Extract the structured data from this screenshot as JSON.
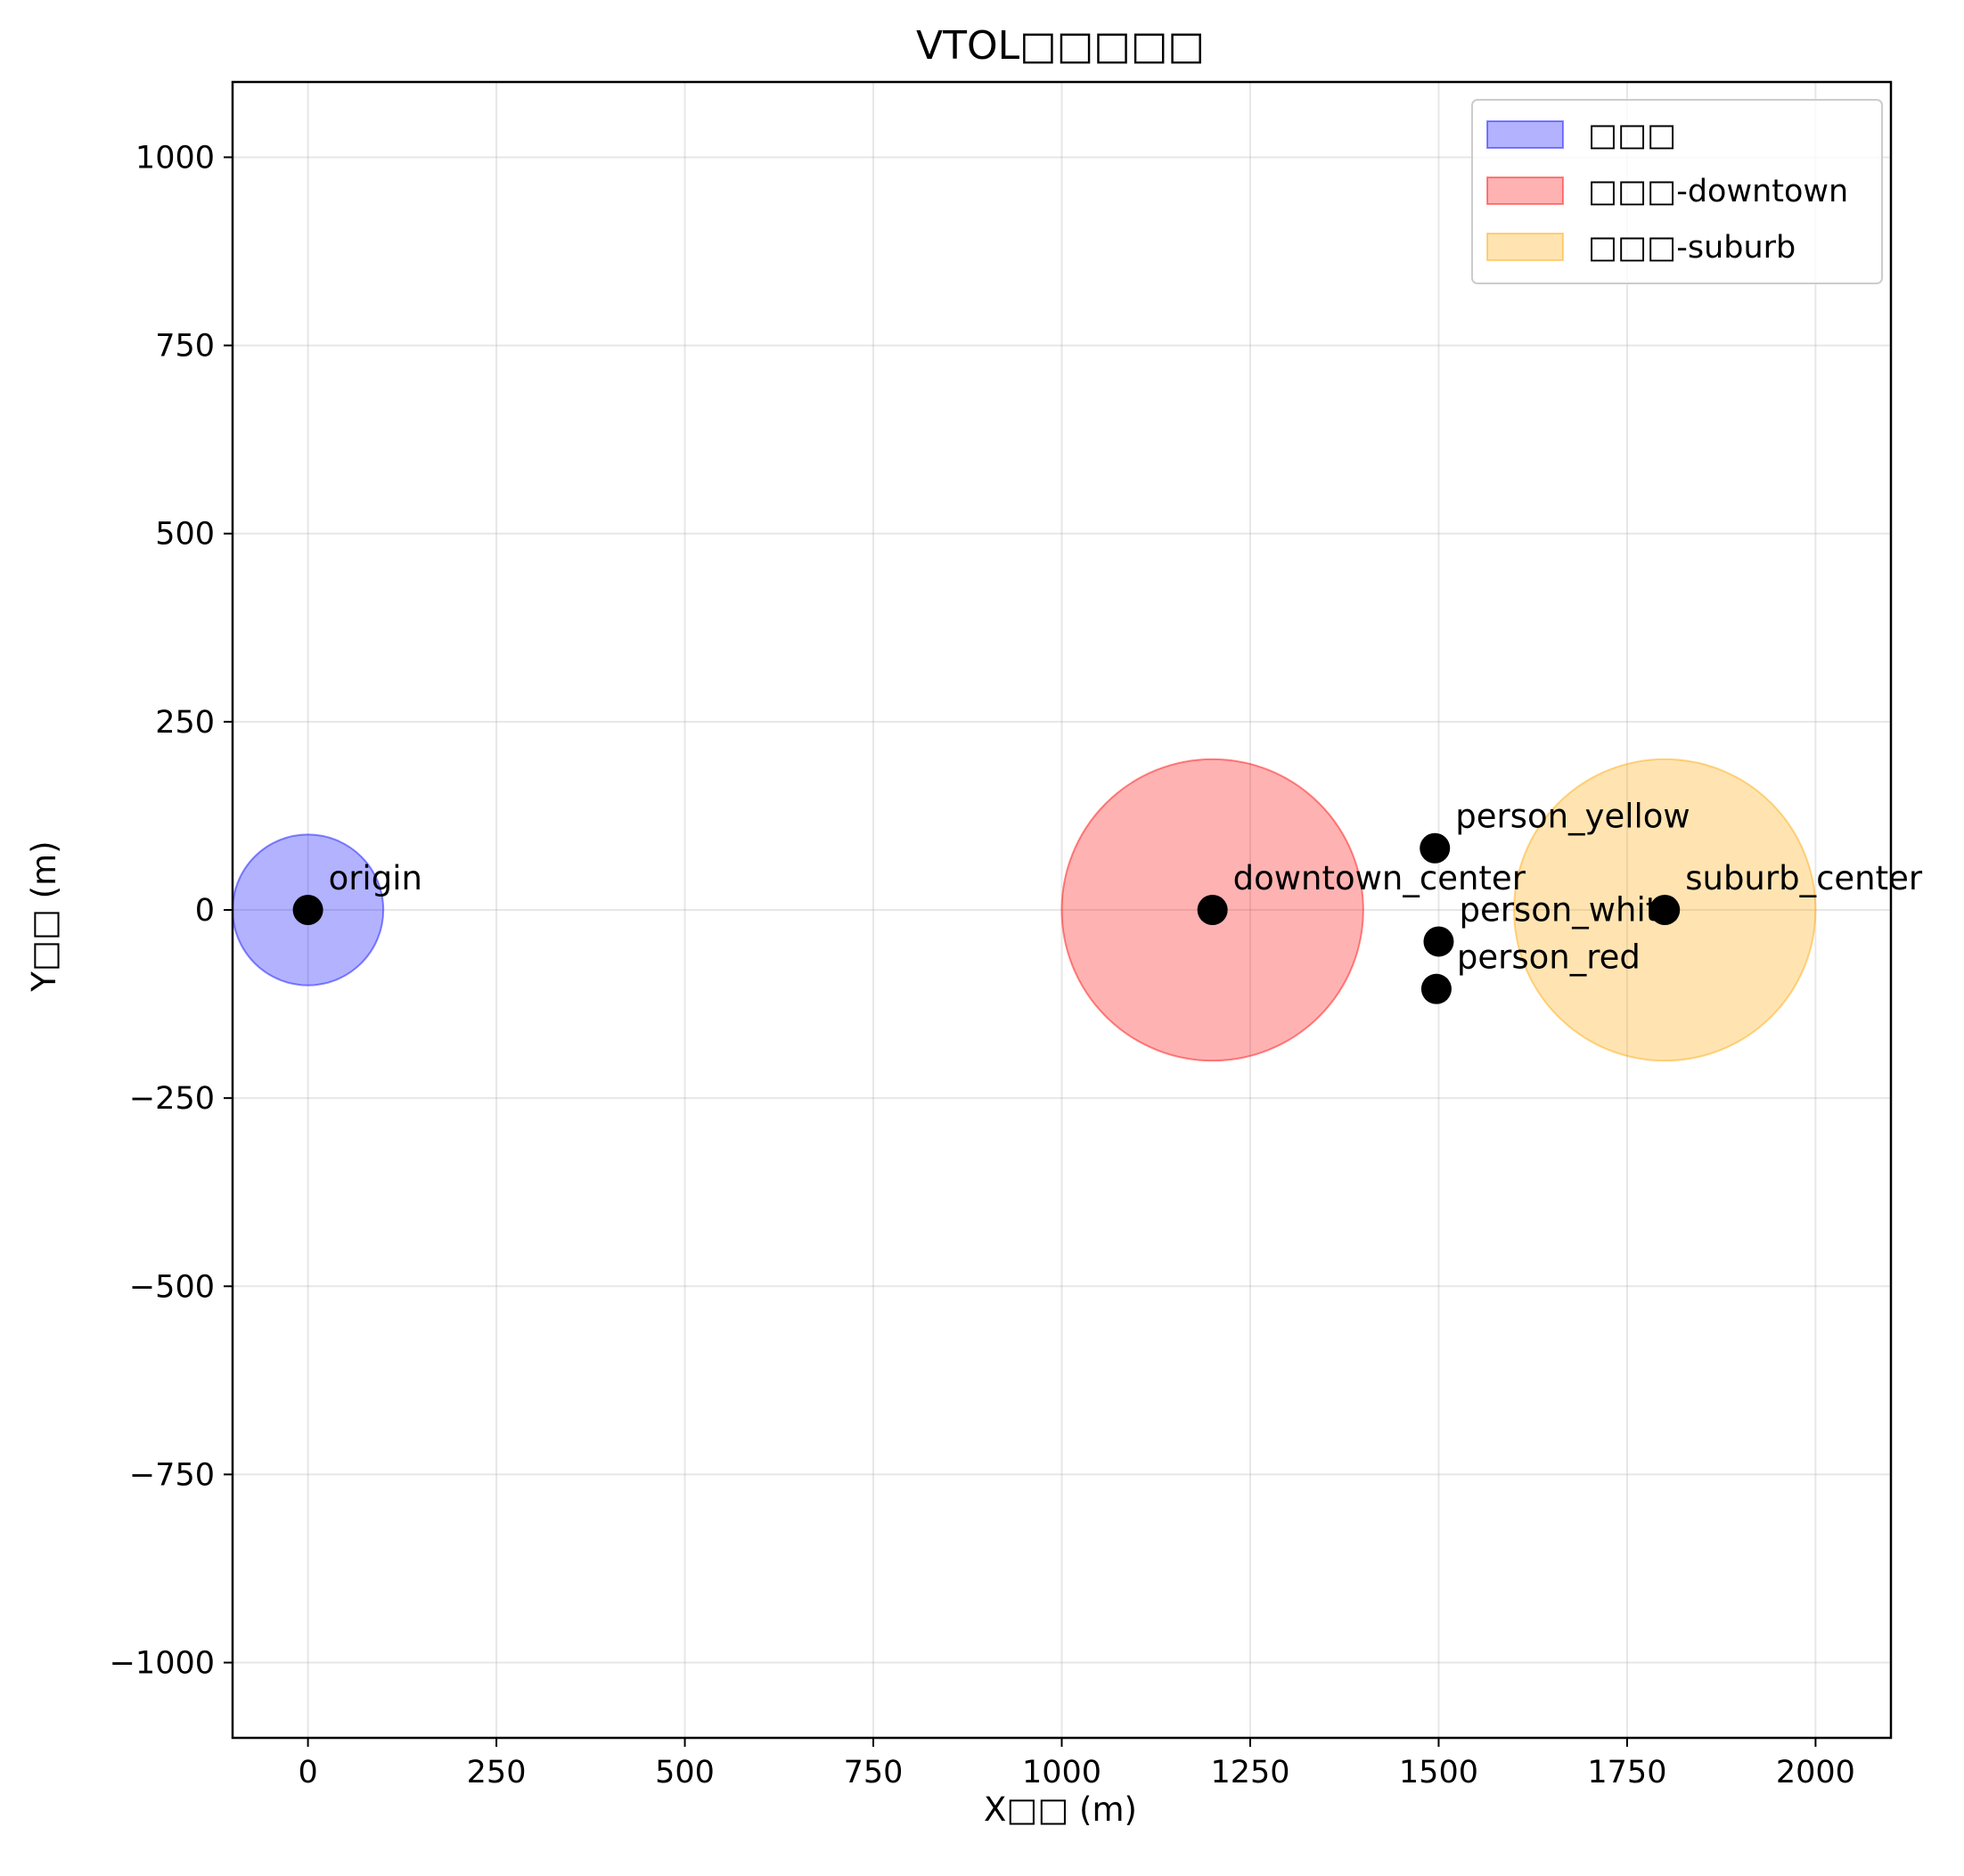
{
  "chart_data": {
    "type": "scatter",
    "title": "VTOL□□□□□",
    "xlabel": "X□□ (m)",
    "ylabel": "Y□□ (m)",
    "xlim": [
      -100,
      2100
    ],
    "ylim": [
      -1100,
      1100
    ],
    "xticks": [
      0,
      250,
      500,
      750,
      1000,
      1250,
      1500,
      1750,
      2000
    ],
    "xtick_labels": [
      "0",
      "250",
      "500",
      "750",
      "1000",
      "1250",
      "1500",
      "1750",
      "2000"
    ],
    "yticks": [
      1000,
      750,
      500,
      250,
      0,
      -250,
      -500,
      -750,
      -1000
    ],
    "ytick_labels": [
      "1000",
      "750",
      "500",
      "250",
      "0",
      "−250",
      "−500",
      "−750",
      "−1000"
    ],
    "grid": true,
    "legend_position": "top-right",
    "regions": [
      {
        "name": "□□□",
        "center": [
          0,
          0
        ],
        "radius": 100,
        "color": "#0000ff",
        "alpha": 0.3
      },
      {
        "name": "□□□-downtown",
        "center": [
          1200,
          0
        ],
        "radius": 200,
        "color": "#ff0000",
        "alpha": 0.3
      },
      {
        "name": "□□□-suburb",
        "center": [
          1800,
          0
        ],
        "radius": 200,
        "color": "#ffa500",
        "alpha": 0.3
      }
    ],
    "points": [
      {
        "label": "origin",
        "x": 0,
        "y": 0
      },
      {
        "label": "downtown_center",
        "x": 1200,
        "y": 0
      },
      {
        "label": "suburb_center",
        "x": 1800,
        "y": 0
      },
      {
        "label": "person_yellow",
        "x": 1495,
        "y": 82
      },
      {
        "label": "person_white",
        "x": 1500,
        "y": -42
      },
      {
        "label": "person_red",
        "x": 1497,
        "y": -105
      }
    ],
    "marker_color": "#000000"
  }
}
